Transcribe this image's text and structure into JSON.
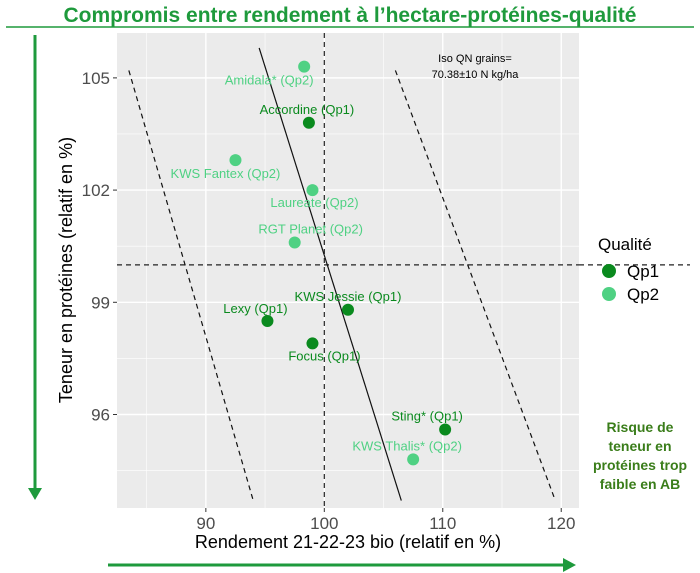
{
  "chart_data": {
    "type": "scatter",
    "title": "Compromis entre rendement à l’hectare-protéines-qualité",
    "xlabel": "Rendement 21-22-23 bio (relatif en %)",
    "ylabel": "Teneur en protéines (relatif en %)",
    "xlim": [
      82.5,
      121.5
    ],
    "ylim": [
      93.5,
      106.2
    ],
    "x_ticks": [
      90,
      100,
      110,
      120
    ],
    "y_ticks": [
      96,
      99,
      102,
      105
    ],
    "x_tick_labels": [
      "90",
      "100",
      "110",
      "120"
    ],
    "y_tick_labels": [
      "96",
      "99",
      "102",
      "105"
    ],
    "grid": true,
    "legend": {
      "title": "Qualité",
      "position": "right",
      "entries": [
        {
          "key": "Qp1",
          "label": "Qp1",
          "color": "#0a8a1e"
        },
        {
          "key": "Qp2",
          "label": "Qp2",
          "color": "#4fd183"
        }
      ]
    },
    "points": [
      {
        "label": "Amidala* (Qp2)",
        "x": 98.3,
        "y": 105.3,
        "group": "Qp2"
      },
      {
        "label": "Accordine (Qp1)",
        "x": 98.7,
        "y": 103.8,
        "group": "Qp1"
      },
      {
        "label": "KWS Fantex (Qp2)",
        "x": 92.5,
        "y": 102.8,
        "group": "Qp2"
      },
      {
        "label": "Laureate (Qp2)",
        "x": 99.0,
        "y": 102.0,
        "group": "Qp2"
      },
      {
        "label": "RGT Planet (Qp2)",
        "x": 97.5,
        "y": 100.6,
        "group": "Qp2"
      },
      {
        "label": "KWS Jessie (Qp1)",
        "x": 102.0,
        "y": 98.8,
        "group": "Qp1"
      },
      {
        "label": "Lexy (Qp1)",
        "x": 95.2,
        "y": 98.5,
        "group": "Qp1"
      },
      {
        "label": "Focus (Qp1)",
        "x": 99.0,
        "y": 97.9,
        "group": "Qp1"
      },
      {
        "label": "Sting* (Qp1)",
        "x": 110.2,
        "y": 95.6,
        "group": "Qp1"
      },
      {
        "label": "KWS Thalis* (Qp2)",
        "x": 107.5,
        "y": 94.8,
        "group": "Qp2"
      }
    ],
    "reference_lines": {
      "vertical_dashed_x": 100,
      "horizontal_dashed_y": 100,
      "iso_line": {
        "from": [
          94.5,
          105.8
        ],
        "to": [
          106.5,
          93.7
        ]
      },
      "iso_lower_dashed": {
        "from": [
          83.5,
          105.2
        ],
        "to": [
          94.0,
          93.7
        ]
      },
      "iso_upper_dashed": {
        "from": [
          106.0,
          105.2
        ],
        "to": [
          119.5,
          93.7
        ]
      }
    },
    "annotation": "Iso QN grains=\n70.38±10 N kg/ha",
    "side_note": "Risque de\nteneur en\nprotéines trop\nfaible en AB"
  }
}
